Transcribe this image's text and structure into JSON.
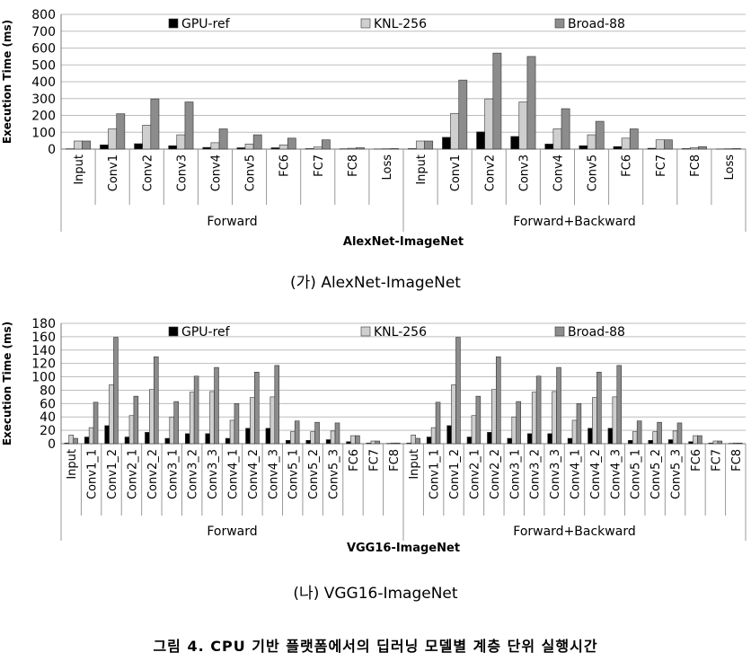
{
  "figure_caption": "그림 4. CPU 기반 플랫폼에서의 딥러닝 모델별 계층 단위 실행시간",
  "chart_data": [
    {
      "type": "bar",
      "caption": "(가) AlexNet-ImageNet",
      "subtitle": "AlexNet-ImageNet",
      "ylabel": "Execution Time (ms)",
      "ylim": [
        0,
        800
      ],
      "yticks": [
        0,
        100,
        200,
        300,
        400,
        500,
        600,
        700,
        800
      ],
      "grid": true,
      "legend_position": "top",
      "groups": [
        {
          "name": "Forward",
          "categories": [
            "Input",
            "Conv1",
            "Conv2",
            "Conv3",
            "Conv4",
            "Conv5",
            "FC6",
            "FC7",
            "FC8",
            "Loss"
          ]
        },
        {
          "name": "Forward+Backward",
          "categories": [
            "Input",
            "Conv1",
            "Conv2",
            "Conv3",
            "Conv4",
            "Conv5",
            "FC6",
            "FC7",
            "FC8",
            "Loss"
          ]
        }
      ],
      "series": [
        {
          "name": "GPU-ref",
          "color": "#000000",
          "values": [
            2,
            25,
            32,
            20,
            10,
            8,
            8,
            3,
            2,
            1,
            3,
            70,
            102,
            75,
            30,
            20,
            15,
            5,
            3,
            1
          ]
        },
        {
          "name": "KNL-256",
          "color": "#cfcfcf",
          "values": [
            48,
            120,
            142,
            85,
            38,
            30,
            25,
            12,
            5,
            2,
            48,
            212,
            298,
            280,
            120,
            85,
            65,
            55,
            8,
            2
          ]
        },
        {
          "name": "Broad-88",
          "color": "#8c8c8c",
          "values": [
            48,
            210,
            298,
            280,
            120,
            85,
            65,
            55,
            8,
            3,
            48,
            410,
            570,
            550,
            240,
            165,
            120,
            55,
            15,
            3
          ]
        }
      ]
    },
    {
      "type": "bar",
      "caption": "(나) VGG16-ImageNet",
      "subtitle": "VGG16-ImageNet",
      "ylabel": "Execution Time (ms)",
      "ylim": [
        0,
        180
      ],
      "yticks": [
        0,
        20,
        40,
        60,
        80,
        100,
        120,
        140,
        160,
        180
      ],
      "grid": true,
      "legend_position": "top",
      "groups": [
        {
          "name": "Forward",
          "categories": [
            "Input",
            "Conv1_1",
            "Conv1_2",
            "Conv2_1",
            "Conv2_2",
            "Conv3_1",
            "Conv3_2",
            "Conv3_3",
            "Conv4_1",
            "Conv4_2",
            "Conv4_3",
            "Conv5_1",
            "Conv5_2",
            "Conv5_3",
            "FC6",
            "FC7",
            "FC8"
          ]
        },
        {
          "name": "Forward+Backward",
          "categories": [
            "Input",
            "Conv1_1",
            "Conv1_2",
            "Conv2_1",
            "Conv2_2",
            "Conv3_1",
            "Conv3_2",
            "Conv3_3",
            "Conv4_1",
            "Conv4_2",
            "Conv4_3",
            "Conv5_1",
            "Conv5_2",
            "Conv5_3",
            "FC6",
            "FC7",
            "FC8"
          ]
        }
      ],
      "series": [
        {
          "name": "GPU-ref",
          "color": "#000000",
          "values": [
            1,
            10,
            27,
            10,
            17,
            8,
            15,
            15,
            8,
            23,
            23,
            5,
            5,
            6,
            3,
            1,
            0.5,
            1,
            10,
            27,
            10,
            17,
            8,
            15,
            15,
            8,
            23,
            23,
            5,
            5,
            6,
            3,
            1,
            0.5
          ]
        },
        {
          "name": "KNL-256",
          "color": "#cfcfcf",
          "values": [
            13,
            24,
            88,
            42,
            81,
            40,
            77,
            78,
            35,
            69,
            70,
            18,
            18,
            19,
            12,
            4,
            1,
            13,
            24,
            88,
            42,
            81,
            40,
            77,
            78,
            35,
            69,
            70,
            18,
            18,
            19,
            12,
            4,
            1
          ]
        },
        {
          "name": "Broad-88",
          "color": "#8c8c8c",
          "values": [
            8,
            62,
            159,
            71,
            130,
            63,
            101,
            114,
            60,
            107,
            117,
            34,
            32,
            31,
            12,
            4,
            1,
            8,
            62,
            159,
            71,
            130,
            63,
            101,
            114,
            60,
            107,
            117,
            34,
            32,
            31,
            12,
            4,
            1
          ]
        }
      ]
    }
  ]
}
